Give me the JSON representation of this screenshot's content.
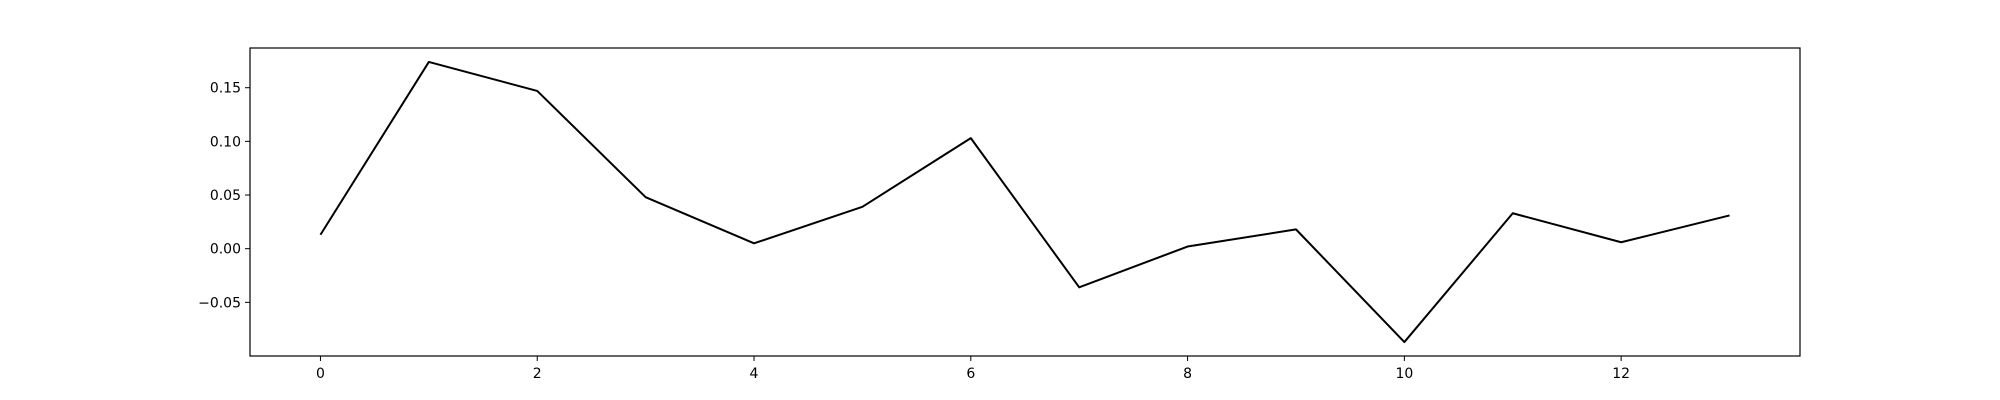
{
  "chart_data": {
    "type": "line",
    "title": "",
    "xlabel": "",
    "ylabel": "",
    "x": [
      0,
      1,
      2,
      3,
      4,
      5,
      6,
      7,
      8,
      9,
      10,
      11,
      12,
      13
    ],
    "series": [
      {
        "values": [
          0.013,
          0.174,
          0.147,
          0.048,
          0.005,
          0.039,
          0.103,
          -0.036,
          0.002,
          0.018,
          -0.087,
          0.033,
          0.006,
          0.031
        ],
        "color": "#000000"
      }
    ],
    "xlim": [
      -0.65,
      13.65
    ],
    "ylim": [
      -0.1,
      0.187
    ],
    "xticks": [
      0,
      2,
      4,
      6,
      8,
      10,
      12
    ],
    "xtick_labels": [
      "0",
      "2",
      "4",
      "6",
      "8",
      "10",
      "12"
    ],
    "yticks": [
      -0.05,
      0.0,
      0.05,
      0.1,
      0.15
    ],
    "ytick_labels": [
      "−0.05",
      "0.00",
      "0.05",
      "0.10",
      "0.15"
    ],
    "grid": false,
    "legend": "none"
  }
}
